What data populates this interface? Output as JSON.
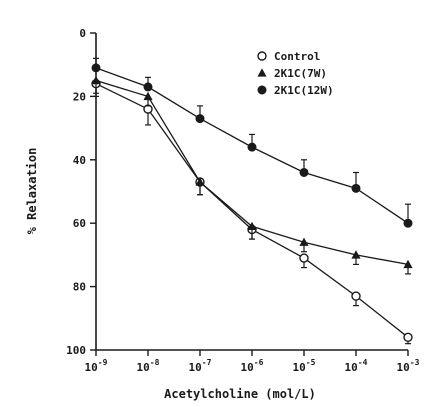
{
  "chart_data": {
    "type": "line",
    "xlabel": "Acetylcholine (mol/L)",
    "ylabel": "% Relaxation",
    "x_log": true,
    "x": [
      1e-09,
      1e-08,
      1e-07,
      1e-06,
      1e-05,
      0.0001,
      0.001
    ],
    "x_tick_labels": [
      {
        "base": "10",
        "exp": "-9"
      },
      {
        "base": "10",
        "exp": "-8"
      },
      {
        "base": "10",
        "exp": "-7"
      },
      {
        "base": "10",
        "exp": "-6"
      },
      {
        "base": "10",
        "exp": "-5"
      },
      {
        "base": "10",
        "exp": "-4"
      },
      {
        "base": "10",
        "exp": "-3"
      }
    ],
    "y_ticks": [
      0,
      20,
      40,
      60,
      80,
      100
    ],
    "ylim": [
      0,
      100
    ],
    "y_inverted": true,
    "legend_position": "top-right",
    "series": [
      {
        "name": "Control",
        "marker": "open-circle",
        "values": [
          16,
          24,
          47,
          62,
          71,
          83,
          96
        ],
        "err": [
          4,
          5,
          4,
          3,
          3,
          3,
          2
        ]
      },
      {
        "name": "2K1C(7W)",
        "marker": "filled-triangle",
        "values": [
          15,
          20,
          47,
          61,
          66,
          70,
          73
        ],
        "err": [
          4,
          3,
          4,
          4,
          3,
          3,
          3
        ]
      },
      {
        "name": "2K1C(12W)",
        "marker": "filled-circle",
        "values": [
          11,
          17,
          27,
          36,
          44,
          49,
          60
        ],
        "err": [
          3,
          3,
          4,
          4,
          4,
          5,
          6
        ]
      }
    ],
    "colors": {
      "ink": "#1a1a1a",
      "background": "#ffffff"
    }
  }
}
